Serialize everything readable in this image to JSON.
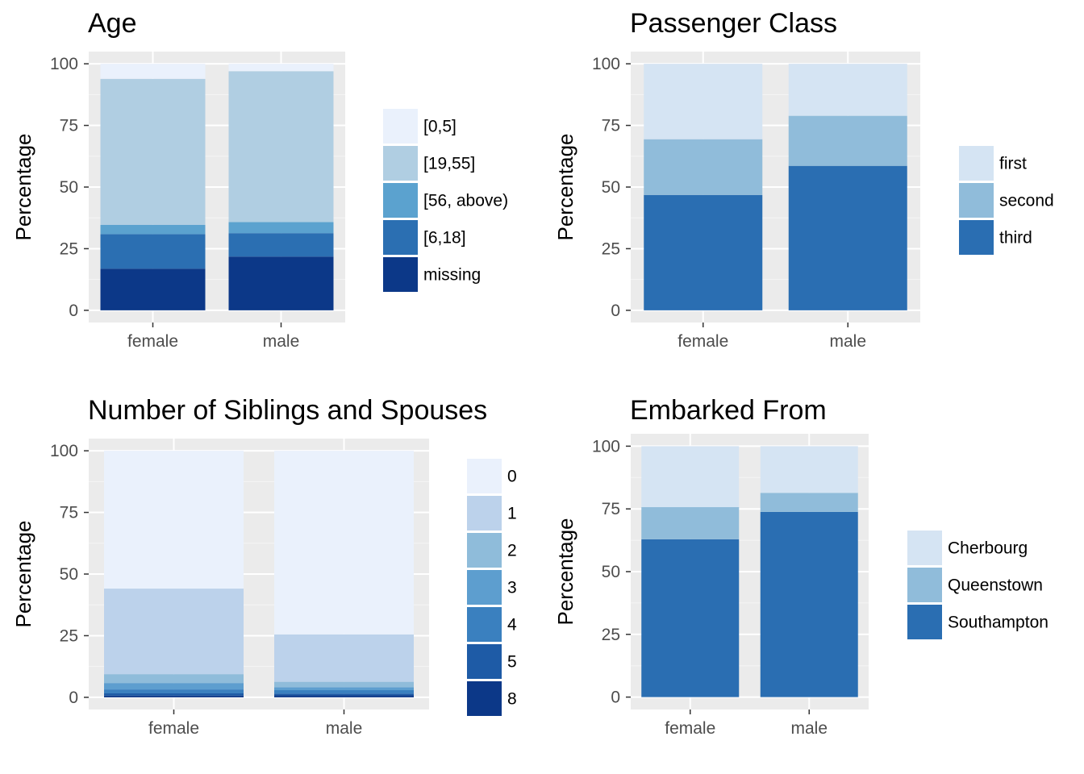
{
  "chart_data": [
    {
      "type": "bar",
      "stacked": true,
      "title": "Age",
      "xlabel": "",
      "ylabel": "Percentage",
      "ylim": [
        0,
        100
      ],
      "yticks": [
        0,
        25,
        50,
        75,
        100
      ],
      "categories": [
        "female",
        "male"
      ],
      "grid": true,
      "legend_position": "right",
      "series": [
        {
          "name": "[0,5]",
          "values": [
            6.1,
            3.0
          ],
          "color": "#eaf1fc"
        },
        {
          "name": "[19,55]",
          "values": [
            59.2,
            61.2
          ],
          "color": "#b0cee2"
        },
        {
          "name": "[56, above)",
          "values": [
            3.8,
            4.5
          ],
          "color": "#5ba2cf"
        },
        {
          "name": "[6,18]",
          "values": [
            14.0,
            9.5
          ],
          "color": "#2b6fb2"
        },
        {
          "name": "missing",
          "values": [
            16.9,
            21.8
          ],
          "color": "#0c3888"
        }
      ]
    },
    {
      "type": "bar",
      "stacked": true,
      "title": "Passenger Class",
      "xlabel": "",
      "ylabel": "Percentage",
      "ylim": [
        0,
        100
      ],
      "yticks": [
        0,
        25,
        50,
        75,
        100
      ],
      "categories": [
        "female",
        "male"
      ],
      "grid": true,
      "legend_position": "right",
      "series": [
        {
          "name": "first",
          "values": [
            30.6,
            21.1
          ],
          "color": "#d5e4f3"
        },
        {
          "name": "second",
          "values": [
            22.6,
            20.3
          ],
          "color": "#90bcda"
        },
        {
          "name": "third",
          "values": [
            46.8,
            58.6
          ],
          "color": "#2a6eb2"
        }
      ]
    },
    {
      "type": "bar",
      "stacked": true,
      "title": "Number of Siblings and Spouses",
      "xlabel": "",
      "ylabel": "Percentage",
      "ylim": [
        0,
        100
      ],
      "yticks": [
        0,
        25,
        50,
        75,
        100
      ],
      "categories": [
        "female",
        "male"
      ],
      "grid": true,
      "legend_position": "right",
      "series": [
        {
          "name": "0",
          "values": [
            55.9,
            74.5
          ],
          "color": "#eaf1fc"
        },
        {
          "name": "1",
          "values": [
            34.7,
            19.2
          ],
          "color": "#bcd2eb"
        },
        {
          "name": "2",
          "values": [
            3.6,
            2.2
          ],
          "color": "#8fbcda"
        },
        {
          "name": "3",
          "values": [
            2.6,
            1.2
          ],
          "color": "#5d9ecf"
        },
        {
          "name": "4",
          "values": [
            1.6,
            1.4
          ],
          "color": "#3a80bf"
        },
        {
          "name": "5",
          "values": [
            0.9,
            0.7
          ],
          "color": "#1e5ba6"
        },
        {
          "name": "8",
          "values": [
            0.7,
            0.8
          ],
          "color": "#0c3888"
        }
      ]
    },
    {
      "type": "bar",
      "stacked": true,
      "title": "Embarked From",
      "xlabel": "",
      "ylabel": "Percentage",
      "ylim": [
        0,
        100
      ],
      "yticks": [
        0,
        25,
        50,
        75,
        100
      ],
      "categories": [
        "female",
        "male"
      ],
      "grid": true,
      "legend_position": "right",
      "series": [
        {
          "name": "Cherbourg",
          "values": [
            24.3,
            18.6
          ],
          "color": "#d5e4f3"
        },
        {
          "name": "Queenstown",
          "values": [
            12.8,
            7.6
          ],
          "color": "#90bcda"
        },
        {
          "name": "Southampton",
          "values": [
            62.9,
            73.8
          ],
          "color": "#2a6eb2"
        }
      ]
    }
  ]
}
